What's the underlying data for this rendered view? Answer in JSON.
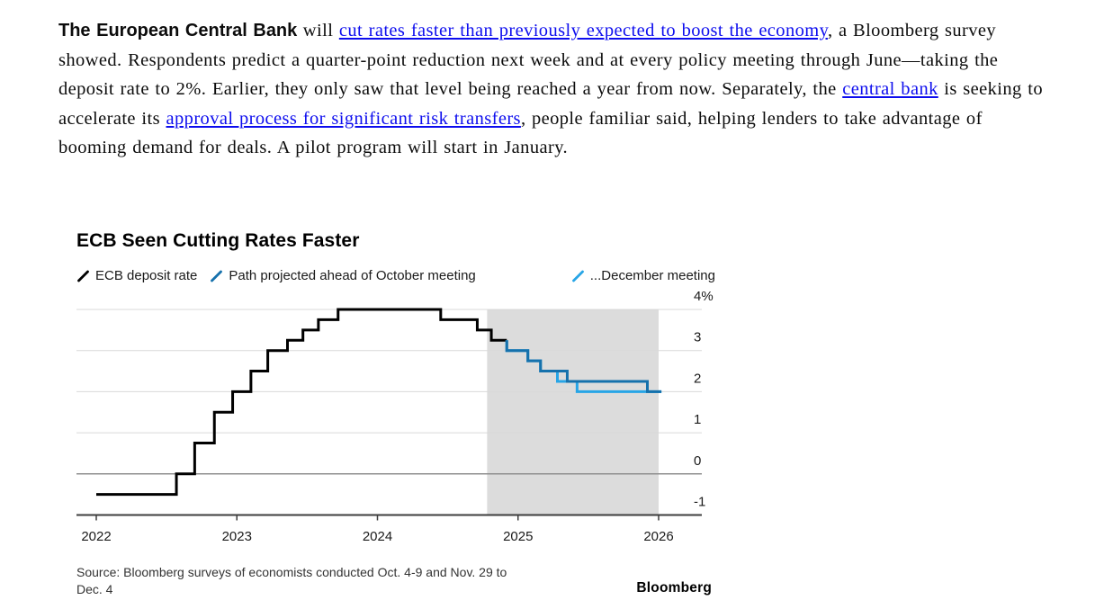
{
  "article": {
    "lead_bold": "The European Central Bank",
    "t1": " will ",
    "link1": "cut rates faster than previously expected to boost the economy",
    "t2": ", a Bloomberg survey showed. Respondents predict a quarter-point reduction next week and at every policy meeting through June—taking the deposit rate to 2%. Earlier, they only saw that level being reached a year from now. Separately, the ",
    "link2": "central bank",
    "t3": " is seeking to accelerate its ",
    "link3": "approval process for significant risk transfers",
    "t4": ", people familiar said, helping lenders to take advantage of booming demand for deals. A pilot program will start in January.",
    "link_color": "#0d0dee"
  },
  "chart_data": {
    "type": "line",
    "title": "ECB Seen Cutting Rates Faster",
    "x_ticks": [
      2022,
      2023,
      2024,
      2025,
      2026
    ],
    "x_range": [
      2021.86,
      2026.31
    ],
    "y_range": [
      -1,
      4
    ],
    "y_ticks": [
      {
        "v": 4,
        "label": "4%"
      },
      {
        "v": 3,
        "label": "3"
      },
      {
        "v": 2,
        "label": "2"
      },
      {
        "v": 1,
        "label": "1"
      },
      {
        "v": 0,
        "label": "0"
      },
      {
        "v": -1,
        "label": "-1"
      }
    ],
    "grid": "horizontal",
    "legend_position": "top",
    "projection_shade": {
      "x_start": 2024.78,
      "x_end": 2026.0,
      "color": "#dcdcdc"
    },
    "draw_order": [
      0,
      2,
      1
    ],
    "series": [
      {
        "name": "ECB deposit rate",
        "color": "#000000",
        "step": true,
        "points": [
          [
            2022.0,
            -0.5
          ],
          [
            2022.57,
            0.0
          ],
          [
            2022.7,
            0.75
          ],
          [
            2022.84,
            1.5
          ],
          [
            2022.97,
            2.0
          ],
          [
            2023.1,
            2.5
          ],
          [
            2023.22,
            3.0
          ],
          [
            2023.36,
            3.25
          ],
          [
            2023.47,
            3.5
          ],
          [
            2023.58,
            3.75
          ],
          [
            2023.72,
            4.0
          ],
          [
            2024.45,
            3.75
          ],
          [
            2024.71,
            3.5
          ],
          [
            2024.81,
            3.25
          ]
        ],
        "x_end": 2024.92
      },
      {
        "name": "Path projected ahead of October meeting",
        "color": "#1571ac",
        "step": true,
        "points": [
          [
            2024.92,
            3.25
          ],
          [
            2024.92,
            3.0
          ],
          [
            2025.07,
            2.75
          ],
          [
            2025.16,
            2.5
          ],
          [
            2025.35,
            2.25
          ],
          [
            2025.92,
            2.0
          ]
        ],
        "x_end": 2026.02
      },
      {
        "name": "...December meeting",
        "color": "#27a5e6",
        "step": true,
        "points": [
          [
            2024.92,
            3.25
          ],
          [
            2024.92,
            3.0
          ],
          [
            2025.07,
            2.75
          ],
          [
            2025.16,
            2.5
          ],
          [
            2025.28,
            2.25
          ],
          [
            2025.42,
            2.0
          ]
        ],
        "x_end": 2026.02
      }
    ],
    "axis_colors": {
      "grid": "#d9d9d9",
      "zero_line": "#909090",
      "axis": "#3d3d3d",
      "label": "#1a1a1a"
    }
  },
  "footer": {
    "source_line1": "Source: Bloomberg surveys of economists conducted Oct. 4-9 and Nov. 29 to",
    "source_line2": "Dec. 4",
    "logo": "Bloomberg"
  }
}
